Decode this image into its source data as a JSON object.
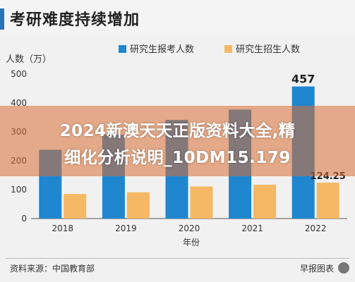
{
  "title": "考研难度持续增加",
  "source": "资料来源：中国教育部",
  "credit": "早报图表",
  "watermark": {
    "line1": "2024新澳天天正版资料大全,精",
    "line2": "细化分析说明_10DM15.179"
  },
  "colors": {
    "applicants": "#1f86d0",
    "enrollment": "#f5b865",
    "title_accent": "#2a72b8"
  },
  "chart_data": {
    "type": "bar",
    "ylabel": "人数（万）",
    "xlabel": "年份",
    "ylim": [
      0,
      500
    ],
    "yticks": [
      0,
      100,
      200,
      300,
      400,
      500
    ],
    "categories": [
      "2018",
      "2019",
      "2020",
      "2021",
      "2022"
    ],
    "legend_position": "top",
    "grid": false,
    "series": [
      {
        "name": "研究生报考人数",
        "values": [
          238,
          290,
          341,
          377,
          457
        ]
      },
      {
        "name": "研究生招生人数",
        "values": [
          85,
          91,
          111,
          117,
          124.25
        ]
      }
    ],
    "data_labels": [
      "457",
      "124.25"
    ]
  }
}
